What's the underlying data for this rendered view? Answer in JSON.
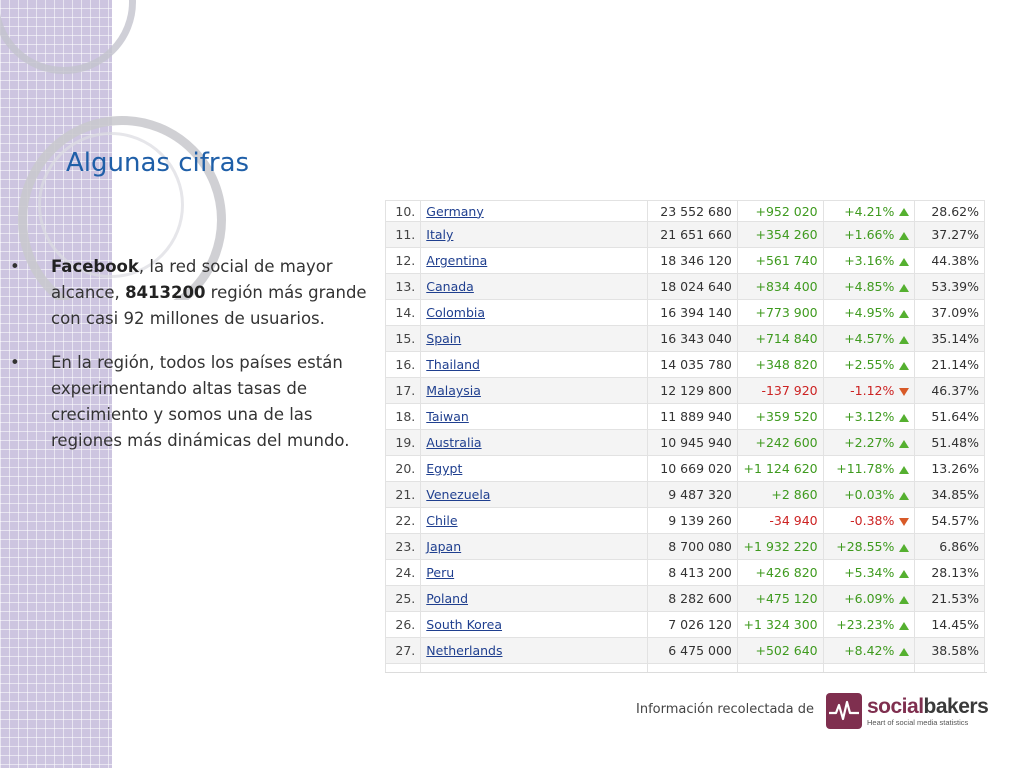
{
  "slide": {
    "title": "Algunas cifras",
    "bullets": [
      {
        "marker": "•",
        "bold": "Facebook",
        "text1": ", la red social de mayor alcance,  ",
        "bold2": "8413200",
        "text2": " región más grande con casi 92 millones de usuarios."
      },
      {
        "marker": "•",
        "text": "En la región, todos los países están experimentando altas tasas de crecimiento y somos una de las regiones más dinámicas del mundo."
      }
    ],
    "credit": "Información  recolectada de",
    "logo": {
      "part1": "social",
      "part2": "bakers",
      "tagline": "Heart of social media statistics",
      "icon": "heartbeat-icon"
    }
  },
  "table": {
    "rows": [
      {
        "rank": "10.",
        "country": "Germany",
        "users": "23 552 680",
        "change": "+952 020",
        "pct": "+4.21%",
        "trend": "up",
        "penetration": "28.62%"
      },
      {
        "rank": "11.",
        "country": "Italy",
        "users": "21 651 660",
        "change": "+354 260",
        "pct": "+1.66%",
        "trend": "up",
        "penetration": "37.27%"
      },
      {
        "rank": "12.",
        "country": "Argentina",
        "users": "18 346 120",
        "change": "+561 740",
        "pct": "+3.16%",
        "trend": "up",
        "penetration": "44.38%"
      },
      {
        "rank": "13.",
        "country": "Canada",
        "users": "18 024 640",
        "change": "+834 400",
        "pct": "+4.85%",
        "trend": "up",
        "penetration": "53.39%"
      },
      {
        "rank": "14.",
        "country": "Colombia",
        "users": "16 394 140",
        "change": "+773 900",
        "pct": "+4.95%",
        "trend": "up",
        "penetration": "37.09%"
      },
      {
        "rank": "15.",
        "country": "Spain",
        "users": "16 343 040",
        "change": "+714 840",
        "pct": "+4.57%",
        "trend": "up",
        "penetration": "35.14%"
      },
      {
        "rank": "16.",
        "country": "Thailand",
        "users": "14 035 780",
        "change": "+348 820",
        "pct": "+2.55%",
        "trend": "up",
        "penetration": "21.14%"
      },
      {
        "rank": "17.",
        "country": "Malaysia",
        "users": "12 129 800",
        "change": "-137 920",
        "pct": "-1.12%",
        "trend": "down",
        "penetration": "46.37%"
      },
      {
        "rank": "18.",
        "country": "Taiwan",
        "users": "11 889 940",
        "change": "+359 520",
        "pct": "+3.12%",
        "trend": "up",
        "penetration": "51.64%"
      },
      {
        "rank": "19.",
        "country": "Australia",
        "users": "10 945 940",
        "change": "+242 600",
        "pct": "+2.27%",
        "trend": "up",
        "penetration": "51.48%"
      },
      {
        "rank": "20.",
        "country": "Egypt",
        "users": "10 669 020",
        "change": "+1 124 620",
        "pct": "+11.78%",
        "trend": "up",
        "penetration": "13.26%"
      },
      {
        "rank": "21.",
        "country": "Venezuela",
        "users": "9 487 320",
        "change": "+2 860",
        "pct": "+0.03%",
        "trend": "up",
        "penetration": "34.85%"
      },
      {
        "rank": "22.",
        "country": "Chile",
        "users": "9 139 260",
        "change": "-34 940",
        "pct": "-0.38%",
        "trend": "down",
        "penetration": "54.57%"
      },
      {
        "rank": "23.",
        "country": "Japan",
        "users": "8 700 080",
        "change": "+1 932 220",
        "pct": "+28.55%",
        "trend": "up",
        "penetration": "6.86%"
      },
      {
        "rank": "24.",
        "country": "Peru",
        "users": "8 413 200",
        "change": "+426 820",
        "pct": "+5.34%",
        "trend": "up",
        "penetration": "28.13%"
      },
      {
        "rank": "25.",
        "country": "Poland",
        "users": "8 282 600",
        "change": "+475 120",
        "pct": "+6.09%",
        "trend": "up",
        "penetration": "21.53%"
      },
      {
        "rank": "26.",
        "country": "South Korea",
        "users": "7 026 120",
        "change": "+1 324 300",
        "pct": "+23.23%",
        "trend": "up",
        "penetration": "14.45%"
      },
      {
        "rank": "27.",
        "country": "Netherlands",
        "users": "6 475 000",
        "change": "+502 640",
        "pct": "+8.42%",
        "trend": "up",
        "penetration": "38.58%"
      }
    ]
  },
  "colors": {
    "title": "#1f5fa8",
    "positive": "#3e9a1e",
    "negative": "#cc2222",
    "link": "#1f3f8f",
    "brand": "#7f2f4f"
  }
}
